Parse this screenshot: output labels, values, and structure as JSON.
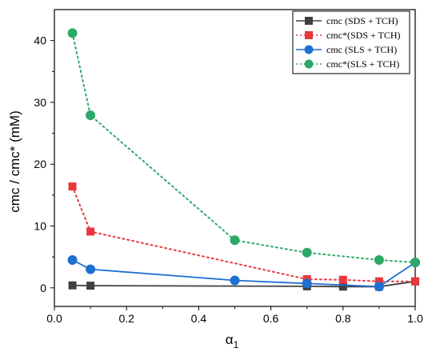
{
  "chart_data": {
    "type": "line",
    "xlabel_main": "α",
    "xlabel_sub": "1",
    "ylabel": "cmc / cmc* (mM)",
    "xlim": [
      0.0,
      1.0
    ],
    "ylim": [
      -3,
      45
    ],
    "xticks": [
      0.0,
      0.2,
      0.4,
      0.6,
      0.8,
      1.0
    ],
    "xtick_labels": [
      "0.0",
      "0.2",
      "0.4",
      "0.6",
      "0.8",
      "1.0"
    ],
    "yticks": [
      0,
      10,
      20,
      30,
      40
    ],
    "ytick_labels": [
      "0",
      "10",
      "20",
      "30",
      "40"
    ],
    "grid": false,
    "legend_position": "top-right",
    "series": [
      {
        "name": "cmc  (SDS + TCH)",
        "color": "#404040",
        "marker": "square",
        "line": "solid",
        "x": [
          0.05,
          0.1,
          0.7,
          0.8,
          0.9,
          1.0
        ],
        "y": [
          0.4,
          0.35,
          0.25,
          0.2,
          0.2,
          1.05
        ]
      },
      {
        "name": "cmc*(SDS + TCH)",
        "color": "#e8383d",
        "marker": "square",
        "line": "dotted",
        "x": [
          0.05,
          0.1,
          0.7,
          0.8,
          0.9,
          1.0
        ],
        "y": [
          16.4,
          9.1,
          1.4,
          1.3,
          1.05,
          1.05
        ]
      },
      {
        "name": "cmc  (SLS + TCH)",
        "color": "#1f6fd1",
        "marker": "circle",
        "line": "solid",
        "x": [
          0.05,
          0.1,
          0.5,
          0.7,
          0.9,
          1.0
        ],
        "y": [
          4.5,
          3.0,
          1.2,
          0.7,
          0.2,
          4.1
        ]
      },
      {
        "name": "cmc*(SLS + TCH)",
        "color": "#2ea868",
        "marker": "circle",
        "line": "dotted",
        "x": [
          0.05,
          0.1,
          0.5,
          0.7,
          0.9,
          1.0
        ],
        "y": [
          41.2,
          27.9,
          7.7,
          5.7,
          4.5,
          4.1
        ]
      }
    ]
  }
}
